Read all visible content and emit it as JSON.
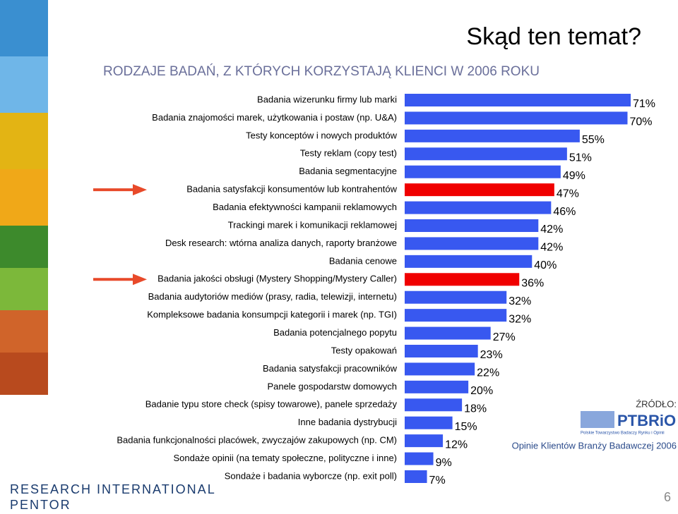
{
  "slide": {
    "title": "Skąd ten temat?",
    "source_label": "ŹRÓDŁO:",
    "logo": "PTBRiO",
    "logo_caption": "Polskie Towarzystwo Badaczy Rynku i Opinii",
    "source_text": "Opinie Klientów  Branży Badawczej 2006",
    "company_line1": "RESEARCH INTERNATIONAL",
    "company_line2": "PENTOR",
    "page_number": "6"
  },
  "chart_data": {
    "type": "hbar",
    "title": "RODZAJE BADAŃ, Z KTÓRYCH KORZYSTAJĄ KLIENCI W 2006 ROKU",
    "categories": [
      "Badania wizerunku firmy lub marki",
      "Badania znajomości marek, użytkowania i postaw (np. U&A)",
      "Testy konceptów i nowych produktów",
      "Testy reklam (copy test)",
      "Badania segmentacyjne",
      "Badania satysfakcji konsumentów lub kontrahentów",
      "Badania efektywności kampanii reklamowych",
      "Trackingi marek i komunikacji reklamowej",
      "Desk research: wtórna analiza danych, raporty branżowe",
      "Badania cenowe",
      "Badania jakości obsługi (Mystery Shopping/Mystery Caller)",
      "Badania audytoriów mediów (prasy, radia, telewizji, internetu)",
      "Kompleksowe badania konsumpcji kategorii i marek (np. TGI)",
      "Badania potencjalnego popytu",
      "Testy opakowań",
      "Badania satysfakcji pracowników",
      "Panele gospodarstw domowych",
      "Badanie typu store check (spisy towarowe), panele sprzedaży",
      "Inne badania dystrybucji",
      "Badania funkcjonalności placówek, zwyczajów zakupowych (np. CM)",
      "Sondaże opinii (na tematy społeczne, polityczne i inne)",
      "Sondaże i badania wyborcze (np. exit poll)"
    ],
    "values": [
      71,
      70,
      55,
      51,
      49,
      47,
      46,
      42,
      42,
      40,
      36,
      32,
      32,
      27,
      23,
      22,
      20,
      18,
      15,
      12,
      9,
      7
    ],
    "value_labels": [
      "71%",
      "70%",
      "55%",
      "51%",
      "49%",
      "47%",
      "46%",
      "42%",
      "42%",
      "40%",
      "36%",
      "32%",
      "32%",
      "27%",
      "23%",
      "22%",
      "20%",
      "18%",
      "15%",
      "12%",
      "9%",
      "7%"
    ],
    "colors": [
      "#3858f0",
      "#3858f0",
      "#3858f0",
      "#3858f0",
      "#3858f0",
      "#f00000",
      "#3858f0",
      "#3858f0",
      "#3858f0",
      "#3858f0",
      "#f00000",
      "#3858f0",
      "#3858f0",
      "#3858f0",
      "#3858f0",
      "#3858f0",
      "#3858f0",
      "#3858f0",
      "#3858f0",
      "#3858f0",
      "#3858f0",
      "#3858f0"
    ]
  }
}
